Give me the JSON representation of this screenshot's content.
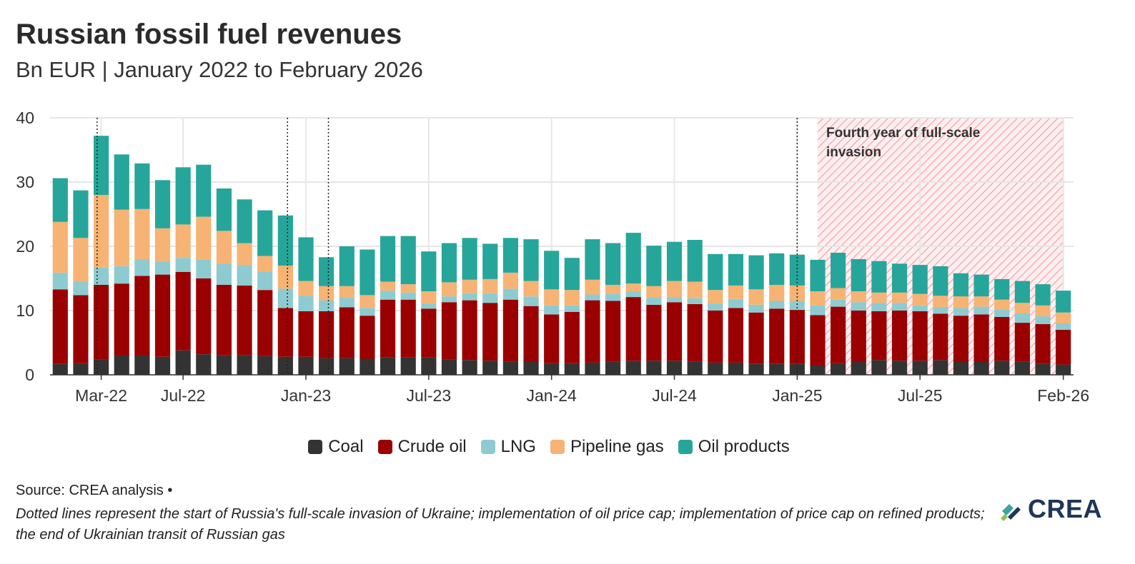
{
  "title": "Russian fossil fuel revenues",
  "subtitle": "Bn EUR | January 2022 to February 2026",
  "source": "Source: CREA analysis •",
  "note": "Dotted lines represent the start of Russia's full-scale invasion of Ukraine; implementation of oil price cap; implementation of price cap on refined products; the end of Ukrainian transit of Russian gas",
  "logo_text": "CREA",
  "colors": {
    "Coal": "#333333",
    "Crude oil": "#9b0000",
    "LNG": "#8ecbd0",
    "Pipeline gas": "#f6b373",
    "Oil products": "#26a69a",
    "shading": "#f4a3a8"
  },
  "chart_data": {
    "type": "bar",
    "stacked": true,
    "title": "Russian fossil fuel revenues",
    "subtitle": "Bn EUR | January 2022 to February 2026",
    "ylim": [
      0,
      40
    ],
    "yticks": [
      0,
      10,
      20,
      30,
      40
    ],
    "grid": true,
    "legend_position": "bottom",
    "x_tick_labels": [
      {
        "index": 2,
        "label": "Mar-22"
      },
      {
        "index": 6,
        "label": "Jul-22"
      },
      {
        "index": 12,
        "label": "Jan-23"
      },
      {
        "index": 18,
        "label": "Jul-23"
      },
      {
        "index": 24,
        "label": "Jan-24"
      },
      {
        "index": 30,
        "label": "Jul-24"
      },
      {
        "index": 36,
        "label": "Jan-25"
      },
      {
        "index": 42,
        "label": "Jul-25"
      },
      {
        "index": 49,
        "label": "Feb-26"
      }
    ],
    "categories": [
      "2022-01",
      "2022-02",
      "2022-03",
      "2022-04",
      "2022-05",
      "2022-06",
      "2022-07",
      "2022-08",
      "2022-09",
      "2022-10",
      "2022-11",
      "2022-12",
      "2023-01",
      "2023-02",
      "2023-03",
      "2023-04",
      "2023-05",
      "2023-06",
      "2023-07",
      "2023-08",
      "2023-09",
      "2023-10",
      "2023-11",
      "2023-12",
      "2024-01",
      "2024-02",
      "2024-03",
      "2024-04",
      "2024-05",
      "2024-06",
      "2024-07",
      "2024-08",
      "2024-09",
      "2024-10",
      "2024-11",
      "2024-12",
      "2025-01",
      "2025-02",
      "2025-03",
      "2025-04",
      "2025-05",
      "2025-06",
      "2025-07",
      "2025-08",
      "2025-09",
      "2025-10",
      "2025-11",
      "2025-12",
      "2026-01",
      "2026-02"
    ],
    "series": [
      {
        "name": "Coal",
        "values": [
          1.7,
          1.8,
          2.4,
          3.0,
          3.0,
          2.8,
          3.8,
          3.2,
          3.1,
          3.1,
          2.9,
          2.8,
          2.8,
          2.6,
          2.6,
          2.5,
          2.7,
          2.7,
          2.7,
          2.4,
          2.3,
          2.2,
          2.1,
          2.0,
          1.8,
          1.8,
          1.9,
          2.1,
          2.2,
          2.2,
          2.2,
          2.1,
          1.9,
          1.9,
          1.7,
          1.7,
          1.7,
          1.5,
          1.8,
          2.0,
          2.3,
          2.2,
          2.2,
          2.3,
          2.0,
          2.0,
          2.2,
          2.1,
          1.7,
          1.6
        ]
      },
      {
        "name": "Crude oil",
        "values": [
          11.6,
          10.6,
          11.6,
          11.2,
          12.4,
          12.8,
          12.2,
          11.8,
          10.9,
          10.8,
          10.3,
          7.6,
          7.1,
          7.3,
          7.9,
          6.7,
          9.0,
          9.0,
          7.6,
          8.9,
          9.3,
          9.0,
          9.6,
          8.7,
          7.6,
          8.0,
          9.7,
          9.4,
          9.9,
          8.7,
          9.1,
          8.9,
          8.1,
          8.5,
          8.0,
          8.6,
          8.4,
          7.8,
          8.8,
          8.0,
          7.6,
          7.8,
          7.7,
          7.2,
          7.2,
          7.4,
          6.8,
          6.0,
          6.2,
          5.4
        ]
      },
      {
        "name": "LNG",
        "values": [
          2.6,
          2.1,
          2.7,
          2.7,
          2.6,
          2.0,
          2.2,
          2.9,
          3.3,
          3.2,
          2.9,
          3.0,
          2.4,
          1.7,
          1.5,
          1.2,
          1.4,
          1.1,
          0.8,
          0.9,
          1.1,
          1.5,
          1.7,
          1.5,
          1.4,
          1.0,
          0.9,
          1.1,
          0.9,
          1.1,
          0.8,
          0.9,
          1.1,
          1.4,
          1.2,
          1.2,
          1.4,
          1.5,
          1.1,
          1.3,
          1.3,
          1.2,
          0.9,
          1.0,
          1.2,
          1.2,
          1.2,
          1.5,
          1.2,
          1.0
        ]
      },
      {
        "name": "Pipeline gas",
        "values": [
          7.9,
          6.8,
          11.3,
          8.8,
          7.8,
          5.2,
          5.2,
          6.7,
          5.1,
          3.4,
          2.4,
          3.6,
          2.3,
          2.2,
          1.8,
          2.0,
          1.4,
          1.3,
          1.9,
          2.2,
          2.1,
          2.2,
          2.5,
          2.4,
          2.5,
          2.4,
          2.3,
          1.4,
          1.2,
          1.8,
          2.5,
          2.6,
          2.1,
          2.1,
          2.4,
          2.5,
          2.4,
          2.2,
          1.8,
          1.7,
          1.6,
          1.6,
          1.8,
          1.8,
          1.8,
          1.6,
          1.5,
          1.6,
          1.7,
          1.7
        ]
      },
      {
        "name": "Oil products",
        "values": [
          6.8,
          7.4,
          9.2,
          8.6,
          7.1,
          7.5,
          8.9,
          8.1,
          6.6,
          6.8,
          7.1,
          7.8,
          6.8,
          4.5,
          6.2,
          7.1,
          7.1,
          7.5,
          6.2,
          6.1,
          6.5,
          5.5,
          5.4,
          6.5,
          6.0,
          5.0,
          6.3,
          6.5,
          7.9,
          6.3,
          6.1,
          6.5,
          5.6,
          4.9,
          5.3,
          4.9,
          4.8,
          4.9,
          5.5,
          5.0,
          4.9,
          4.5,
          4.5,
          4.6,
          3.6,
          3.4,
          3.2,
          3.4,
          3.3,
          3.4
        ]
      }
    ],
    "vertical_lines": [
      {
        "index": 1.8,
        "meaning": "start of Russia's full-scale invasion of Ukraine"
      },
      {
        "index": 11.1,
        "meaning": "implementation of oil price cap"
      },
      {
        "index": 13.1,
        "meaning": "implementation of price cap on refined products"
      },
      {
        "index": 36.0,
        "meaning": "the end of Ukrainian transit of Russian gas"
      }
    ],
    "shaded_region": {
      "from_index": 37.5,
      "to_index": 49.5,
      "label": "Fourth year of full-scale invasion"
    }
  }
}
